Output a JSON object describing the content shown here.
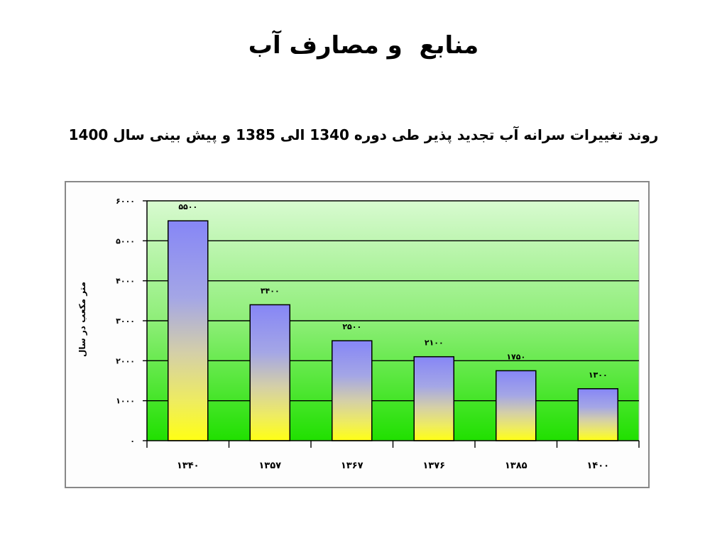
{
  "slide": {
    "title": "منابع  و مصارف آب",
    "subtitle": "روند تغییرات سرانه آب تجدید پذیر طی دوره 1340 الی 1385 و پیش بینی سال 1400"
  },
  "chart_data": {
    "type": "bar",
    "categories": [
      "۱۳۴۰",
      "۱۳۵۷",
      "۱۳۶۷",
      "۱۳۷۶",
      "۱۳۸۵",
      "۱۴۰۰"
    ],
    "values": [
      5500,
      3400,
      2500,
      2100,
      1750,
      1300
    ],
    "data_labels": [
      "۵۵۰۰",
      "۳۴۰۰",
      "۲۵۰۰",
      "۲۱۰۰",
      "۱۷۵۰",
      "۱۳۰۰"
    ],
    "xlabel": "",
    "ylabel": "متر مکعب در سال",
    "ylim": [
      0,
      6000
    ],
    "yticks": [
      0,
      1000,
      2000,
      3000,
      4000,
      5000,
      6000
    ],
    "ytick_labels": [
      "۰",
      "۱۰۰۰",
      "۲۰۰۰",
      "۳۰۰۰",
      "۴۰۰۰",
      "۵۰۰۰",
      "۶۰۰۰"
    ],
    "grid": true,
    "legend": "none",
    "colors": {
      "plot_background_top": "#d8fad0",
      "plot_background_middle": "#8eee78",
      "plot_background_bottom": "#20e000",
      "bar_top": "#8686f6",
      "bar_upper_middle": "#a4a6e6",
      "bar_lower_middle": "#d4cfa8",
      "bar_near_bottom": "#eeec60",
      "bar_bottom": "#ffff14",
      "gridline": "#000000",
      "frame_border": "#888888"
    }
  }
}
